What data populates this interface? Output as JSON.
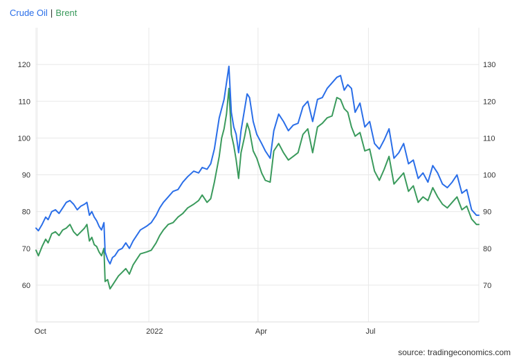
{
  "legend": {
    "series1": "Crude Oil",
    "separator": "|",
    "series2": "Brent"
  },
  "source": "source: tradingeconomics.com",
  "colors": {
    "crude": "#2a6ee8",
    "brent": "#3a9a5c",
    "grid": "#e8e8e8",
    "axis": "#dddddd"
  },
  "chart_data": {
    "type": "line",
    "grid": true,
    "legend_placement": "top-left",
    "x_tick_labels": [
      "Oct",
      "2022",
      "Apr",
      "Jul"
    ],
    "x_tick_dates": [
      "2021-10-01",
      "2022-01-01",
      "2022-04-01",
      "2022-07-01"
    ],
    "x_range": [
      "2021-09-30",
      "2022-09-30"
    ],
    "y_left": {
      "ticks": [
        60,
        70,
        80,
        90,
        100,
        110,
        120
      ],
      "range": [
        50,
        130
      ]
    },
    "y_right": {
      "ticks": [
        70,
        80,
        90,
        100,
        110,
        120,
        130
      ],
      "range": [
        60,
        140
      ]
    },
    "series": [
      {
        "name": "Crude Oil",
        "axis": "left",
        "color": "#2a6ee8",
        "x": [
          "2021-09-30",
          "2021-10-02",
          "2021-10-05",
          "2021-10-08",
          "2021-10-10",
          "2021-10-13",
          "2021-10-16",
          "2021-10-19",
          "2021-10-22",
          "2021-10-25",
          "2021-10-28",
          "2021-10-31",
          "2021-11-03",
          "2021-11-06",
          "2021-11-09",
          "2021-11-11",
          "2021-11-13",
          "2021-11-15",
          "2021-11-17",
          "2021-11-19",
          "2021-11-21",
          "2021-11-23",
          "2021-11-25",
          "2021-11-26",
          "2021-11-28",
          "2021-11-30",
          "2021-12-02",
          "2021-12-04",
          "2021-12-07",
          "2021-12-10",
          "2021-12-13",
          "2021-12-16",
          "2021-12-19",
          "2021-12-22",
          "2021-12-25",
          "2021-12-30",
          "2022-01-03",
          "2022-01-07",
          "2022-01-10",
          "2022-01-13",
          "2022-01-17",
          "2022-01-21",
          "2022-01-25",
          "2022-01-29",
          "2022-02-02",
          "2022-02-07",
          "2022-02-11",
          "2022-02-14",
          "2022-02-18",
          "2022-02-21",
          "2022-02-24",
          "2022-02-28",
          "2022-03-02",
          "2022-03-04",
          "2022-03-06",
          "2022-03-08",
          "2022-03-10",
          "2022-03-12",
          "2022-03-14",
          "2022-03-16",
          "2022-03-18",
          "2022-03-21",
          "2022-03-23",
          "2022-03-25",
          "2022-03-28",
          "2022-03-31",
          "2022-04-04",
          "2022-04-07",
          "2022-04-11",
          "2022-04-14",
          "2022-04-18",
          "2022-04-22",
          "2022-04-26",
          "2022-04-30",
          "2022-05-04",
          "2022-05-08",
          "2022-05-12",
          "2022-05-16",
          "2022-05-20",
          "2022-05-24",
          "2022-05-28",
          "2022-06-01",
          "2022-06-05",
          "2022-06-08",
          "2022-06-11",
          "2022-06-14",
          "2022-06-17",
          "2022-06-20",
          "2022-06-24",
          "2022-06-28",
          "2022-07-02",
          "2022-07-06",
          "2022-07-10",
          "2022-07-14",
          "2022-07-18",
          "2022-07-22",
          "2022-07-26",
          "2022-07-30",
          "2022-08-03",
          "2022-08-07",
          "2022-08-11",
          "2022-08-15",
          "2022-08-19",
          "2022-08-23",
          "2022-08-27",
          "2022-08-31",
          "2022-09-04",
          "2022-09-08",
          "2022-09-12",
          "2022-09-16",
          "2022-09-20",
          "2022-09-24",
          "2022-09-28",
          "2022-09-30"
        ],
        "values": [
          75.5,
          74.8,
          76.5,
          78.5,
          77.8,
          80.0,
          80.5,
          79.5,
          81.0,
          82.5,
          83.0,
          82.0,
          80.5,
          81.5,
          82.0,
          82.5,
          79.0,
          80.0,
          78.5,
          77.5,
          76.0,
          75.0,
          77.0,
          69.0,
          67.0,
          65.8,
          67.5,
          68.0,
          69.5,
          70.0,
          71.5,
          70.0,
          72.0,
          73.5,
          75.0,
          76.0,
          77.0,
          79.0,
          81.0,
          82.5,
          84.0,
          85.5,
          86.0,
          88.0,
          89.5,
          91.0,
          90.5,
          92.0,
          91.5,
          93.0,
          97.0,
          105.5,
          108.0,
          110.5,
          115.0,
          119.5,
          107.0,
          103.0,
          101.0,
          96.0,
          102.0,
          108.0,
          112.0,
          111.0,
          104.5,
          101.0,
          98.5,
          96.5,
          94.5,
          102.0,
          106.5,
          104.5,
          102.0,
          103.5,
          104.0,
          108.5,
          110.0,
          104.5,
          110.5,
          111.0,
          113.5,
          115.0,
          116.5,
          117.0,
          113.0,
          114.5,
          113.5,
          107.0,
          109.5,
          103.0,
          104.5,
          98.5,
          97.0,
          99.5,
          102.5,
          94.5,
          96.0,
          98.5,
          93.0,
          94.0,
          89.0,
          90.5,
          88.0,
          92.5,
          90.5,
          87.5,
          86.5,
          88.0,
          90.0,
          85.0,
          86.0,
          80.5,
          79.0,
          79.0
        ]
      },
      {
        "name": "Brent",
        "axis": "right",
        "color": "#3a9a5c",
        "x": [
          "2021-09-30",
          "2021-10-02",
          "2021-10-05",
          "2021-10-08",
          "2021-10-10",
          "2021-10-13",
          "2021-10-16",
          "2021-10-19",
          "2021-10-22",
          "2021-10-25",
          "2021-10-28",
          "2021-10-31",
          "2021-11-03",
          "2021-11-06",
          "2021-11-09",
          "2021-11-11",
          "2021-11-13",
          "2021-11-15",
          "2021-11-17",
          "2021-11-19",
          "2021-11-21",
          "2021-11-23",
          "2021-11-25",
          "2021-11-26",
          "2021-11-28",
          "2021-11-30",
          "2021-12-02",
          "2021-12-04",
          "2021-12-07",
          "2021-12-10",
          "2021-12-13",
          "2021-12-16",
          "2021-12-19",
          "2021-12-22",
          "2021-12-25",
          "2021-12-30",
          "2022-01-03",
          "2022-01-07",
          "2022-01-10",
          "2022-01-13",
          "2022-01-17",
          "2022-01-21",
          "2022-01-25",
          "2022-01-29",
          "2022-02-02",
          "2022-02-07",
          "2022-02-11",
          "2022-02-14",
          "2022-02-18",
          "2022-02-21",
          "2022-02-24",
          "2022-02-28",
          "2022-03-02",
          "2022-03-04",
          "2022-03-06",
          "2022-03-08",
          "2022-03-10",
          "2022-03-12",
          "2022-03-14",
          "2022-03-16",
          "2022-03-18",
          "2022-03-21",
          "2022-03-23",
          "2022-03-25",
          "2022-03-28",
          "2022-03-31",
          "2022-04-04",
          "2022-04-07",
          "2022-04-11",
          "2022-04-14",
          "2022-04-18",
          "2022-04-22",
          "2022-04-26",
          "2022-04-30",
          "2022-05-04",
          "2022-05-08",
          "2022-05-12",
          "2022-05-16",
          "2022-05-20",
          "2022-05-24",
          "2022-05-28",
          "2022-06-01",
          "2022-06-05",
          "2022-06-08",
          "2022-06-11",
          "2022-06-14",
          "2022-06-17",
          "2022-06-20",
          "2022-06-24",
          "2022-06-28",
          "2022-07-02",
          "2022-07-06",
          "2022-07-10",
          "2022-07-14",
          "2022-07-18",
          "2022-07-22",
          "2022-07-26",
          "2022-07-30",
          "2022-08-03",
          "2022-08-07",
          "2022-08-11",
          "2022-08-15",
          "2022-08-19",
          "2022-08-23",
          "2022-08-27",
          "2022-08-31",
          "2022-09-04",
          "2022-09-08",
          "2022-09-12",
          "2022-09-16",
          "2022-09-20",
          "2022-09-24",
          "2022-09-28",
          "2022-09-30"
        ],
        "values": [
          79.5,
          78.0,
          80.5,
          82.5,
          81.5,
          84.0,
          84.5,
          83.5,
          85.0,
          85.5,
          86.5,
          84.5,
          83.5,
          84.5,
          85.5,
          86.5,
          82.0,
          83.0,
          81.0,
          80.5,
          79.0,
          78.0,
          80.0,
          71.0,
          71.5,
          69.0,
          70.0,
          71.0,
          72.5,
          73.5,
          74.5,
          73.0,
          75.5,
          77.0,
          78.5,
          79.0,
          79.5,
          81.5,
          83.5,
          85.0,
          86.5,
          87.0,
          88.5,
          89.5,
          91.0,
          92.0,
          93.0,
          94.5,
          92.5,
          93.5,
          98.0,
          105.0,
          110.0,
          112.5,
          116.5,
          123.5,
          111.0,
          108.0,
          104.0,
          99.0,
          106.0,
          110.5,
          114.0,
          112.0,
          106.5,
          104.5,
          100.5,
          98.5,
          98.0,
          106.5,
          108.5,
          106.0,
          104.0,
          105.0,
          106.0,
          111.0,
          112.5,
          106.0,
          113.0,
          114.0,
          115.5,
          116.0,
          121.0,
          120.5,
          118.0,
          117.0,
          113.0,
          110.5,
          111.5,
          106.5,
          107.0,
          101.0,
          98.5,
          101.5,
          105.0,
          97.5,
          99.0,
          100.5,
          95.5,
          97.0,
          92.5,
          94.0,
          93.0,
          96.5,
          94.0,
          92.0,
          91.0,
          92.5,
          94.0,
          90.5,
          91.5,
          88.0,
          86.5,
          86.5
        ]
      }
    ]
  }
}
